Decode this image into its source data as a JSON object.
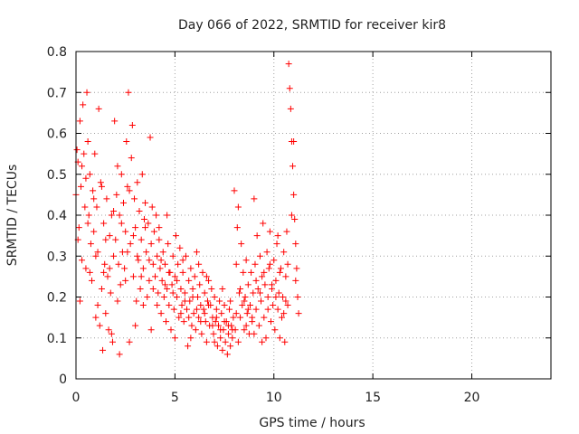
{
  "chart_data": {
    "type": "scatter",
    "title": "Day 066 of 2022, SRMTID for receiver kir8",
    "xlabel": "GPS time / hours",
    "ylabel": "SRMTID / TECUs",
    "xlim": [
      0,
      24
    ],
    "ylim": [
      0,
      0.8
    ],
    "x_ticks": [
      0,
      5,
      10,
      15,
      20
    ],
    "y_ticks": [
      0,
      0.1,
      0.2,
      0.3,
      0.4,
      0.5,
      0.6,
      0.7,
      0.8
    ],
    "x_tick_labels": [
      "0",
      "5",
      "10",
      "15",
      "20"
    ],
    "y_tick_labels": [
      "0",
      "0.1",
      "0.2",
      "0.3",
      "0.4",
      "0.5",
      "0.6",
      "0.7",
      "0.8"
    ],
    "grid": true,
    "marker": "+",
    "color": "#ff0000",
    "series": [
      {
        "name": "SRMTID",
        "points": [
          [
            0.0,
            0.45
          ],
          [
            0.05,
            0.56
          ],
          [
            0.1,
            0.53
          ],
          [
            0.15,
            0.37
          ],
          [
            0.2,
            0.63
          ],
          [
            0.25,
            0.47
          ],
          [
            0.3,
            0.29
          ],
          [
            0.35,
            0.67
          ],
          [
            0.4,
            0.55
          ],
          [
            0.45,
            0.42
          ],
          [
            0.5,
            0.27
          ],
          [
            0.55,
            0.7
          ],
          [
            0.6,
            0.58
          ],
          [
            0.65,
            0.4
          ],
          [
            0.7,
            0.5
          ],
          [
            0.75,
            0.33
          ],
          [
            0.8,
            0.24
          ],
          [
            0.85,
            0.46
          ],
          [
            0.9,
            0.36
          ],
          [
            0.95,
            0.55
          ],
          [
            1.0,
            0.3
          ],
          [
            1.05,
            0.42
          ],
          [
            1.1,
            0.18
          ],
          [
            1.15,
            0.66
          ],
          [
            1.2,
            0.13
          ],
          [
            1.25,
            0.48
          ],
          [
            1.3,
            0.22
          ],
          [
            1.35,
            0.07
          ],
          [
            1.4,
            0.38
          ],
          [
            1.45,
            0.28
          ],
          [
            1.5,
            0.16
          ],
          [
            1.55,
            0.44
          ],
          [
            1.6,
            0.25
          ],
          [
            1.65,
            0.12
          ],
          [
            1.7,
            0.35
          ],
          [
            1.75,
            0.21
          ],
          [
            1.8,
            0.4
          ],
          [
            1.85,
            0.09
          ],
          [
            1.9,
            0.3
          ],
          [
            1.95,
            0.63
          ],
          [
            2.0,
            0.34
          ],
          [
            2.05,
            0.45
          ],
          [
            2.1,
            0.19
          ],
          [
            2.15,
            0.28
          ],
          [
            2.2,
            0.4
          ],
          [
            2.25,
            0.23
          ],
          [
            2.3,
            0.5
          ],
          [
            2.35,
            0.31
          ],
          [
            2.4,
            0.43
          ],
          [
            2.45,
            0.27
          ],
          [
            2.5,
            0.36
          ],
          [
            2.55,
            0.58
          ],
          [
            2.6,
            0.47
          ],
          [
            2.65,
            0.7
          ],
          [
            2.7,
            0.09
          ],
          [
            2.75,
            0.33
          ],
          [
            2.8,
            0.54
          ],
          [
            2.85,
            0.62
          ],
          [
            2.9,
            0.25
          ],
          [
            2.95,
            0.44
          ],
          [
            3.0,
            0.37
          ],
          [
            3.05,
            0.19
          ],
          [
            3.1,
            0.48
          ],
          [
            3.15,
            0.29
          ],
          [
            3.2,
            0.41
          ],
          [
            3.25,
            0.22
          ],
          [
            3.3,
            0.34
          ],
          [
            3.35,
            0.5
          ],
          [
            3.4,
            0.27
          ],
          [
            3.45,
            0.39
          ],
          [
            3.5,
            0.43
          ],
          [
            3.55,
            0.31
          ],
          [
            3.6,
            0.2
          ],
          [
            3.65,
            0.38
          ],
          [
            3.7,
            0.24
          ],
          [
            3.75,
            0.59
          ],
          [
            3.8,
            0.33
          ],
          [
            3.85,
            0.42
          ],
          [
            3.9,
            0.28
          ],
          [
            3.95,
            0.36
          ],
          [
            4.0,
            0.25
          ],
          [
            4.05,
            0.4
          ],
          [
            4.1,
            0.3
          ],
          [
            4.15,
            0.21
          ],
          [
            4.2,
            0.34
          ],
          [
            4.25,
            0.27
          ],
          [
            4.3,
            0.16
          ],
          [
            4.35,
            0.24
          ],
          [
            4.4,
            0.31
          ],
          [
            4.45,
            0.2
          ],
          [
            4.5,
            0.28
          ],
          [
            4.55,
            0.14
          ],
          [
            4.6,
            0.22
          ],
          [
            4.65,
            0.33
          ],
          [
            4.7,
            0.18
          ],
          [
            4.75,
            0.26
          ],
          [
            4.8,
            0.12
          ],
          [
            4.85,
            0.23
          ],
          [
            4.9,
            0.3
          ],
          [
            4.95,
            0.17
          ],
          [
            5.0,
            0.25
          ],
          [
            5.05,
            0.35
          ],
          [
            5.1,
            0.2
          ],
          [
            5.15,
            0.28
          ],
          [
            5.2,
            0.15
          ],
          [
            5.25,
            0.32
          ],
          [
            5.3,
            0.22
          ],
          [
            5.35,
            0.18
          ],
          [
            5.4,
            0.26
          ],
          [
            5.45,
            0.14
          ],
          [
            5.5,
            0.21
          ],
          [
            5.55,
            0.3
          ],
          [
            5.6,
            0.17
          ],
          [
            5.65,
            0.08
          ],
          [
            5.7,
            0.24
          ],
          [
            5.75,
            0.19
          ],
          [
            5.8,
            0.27
          ],
          [
            5.85,
            0.13
          ],
          [
            5.9,
            0.22
          ],
          [
            5.95,
            0.16
          ],
          [
            6.0,
            0.25
          ],
          [
            6.05,
            0.12
          ],
          [
            6.1,
            0.31
          ],
          [
            6.15,
            0.2
          ],
          [
            6.2,
            0.15
          ],
          [
            6.25,
            0.23
          ],
          [
            6.3,
            0.18
          ],
          [
            6.35,
            0.11
          ],
          [
            6.4,
            0.26
          ],
          [
            6.45,
            0.17
          ],
          [
            6.5,
            0.21
          ],
          [
            6.55,
            0.14
          ],
          [
            6.6,
            0.09
          ],
          [
            6.65,
            0.19
          ],
          [
            6.7,
            0.24
          ],
          [
            6.75,
            0.13
          ],
          [
            6.8,
            0.18
          ],
          [
            6.85,
            0.22
          ],
          [
            6.9,
            0.15
          ],
          [
            6.95,
            0.11
          ],
          [
            7.0,
            0.2
          ],
          [
            7.05,
            0.14
          ],
          [
            7.1,
            0.17
          ],
          [
            7.15,
            0.08
          ],
          [
            7.2,
            0.13
          ],
          [
            7.25,
            0.19
          ],
          [
            7.3,
            0.1
          ],
          [
            7.35,
            0.16
          ],
          [
            7.4,
            0.07
          ],
          [
            7.45,
            0.12
          ],
          [
            7.5,
            0.18
          ],
          [
            7.55,
            0.09
          ],
          [
            7.6,
            0.14
          ],
          [
            7.65,
            0.06
          ],
          [
            7.7,
            0.11
          ],
          [
            7.75,
            0.17
          ],
          [
            7.8,
            0.08
          ],
          [
            7.85,
            0.13
          ],
          [
            7.9,
            0.1
          ],
          [
            7.95,
            0.15
          ],
          [
            8.0,
            0.46
          ],
          [
            8.05,
            0.12
          ],
          [
            8.1,
            0.28
          ],
          [
            8.15,
            0.37
          ],
          [
            8.2,
            0.09
          ],
          [
            8.25,
            0.21
          ],
          [
            8.3,
            0.15
          ],
          [
            8.35,
            0.33
          ],
          [
            8.4,
            0.18
          ],
          [
            8.45,
            0.26
          ],
          [
            8.5,
            0.12
          ],
          [
            8.55,
            0.2
          ],
          [
            8.6,
            0.29
          ],
          [
            8.65,
            0.16
          ],
          [
            8.7,
            0.23
          ],
          [
            8.75,
            0.11
          ],
          [
            8.8,
            0.18
          ],
          [
            8.85,
            0.26
          ],
          [
            8.9,
            0.14
          ],
          [
            8.95,
            0.21
          ],
          [
            9.0,
            0.44
          ],
          [
            9.05,
            0.28
          ],
          [
            9.1,
            0.17
          ],
          [
            9.15,
            0.35
          ],
          [
            9.2,
            0.22
          ],
          [
            9.25,
            0.13
          ],
          [
            9.3,
            0.3
          ],
          [
            9.35,
            0.19
          ],
          [
            9.4,
            0.25
          ],
          [
            9.45,
            0.38
          ],
          [
            9.5,
            0.15
          ],
          [
            9.55,
            0.23
          ],
          [
            9.6,
            0.1
          ],
          [
            9.65,
            0.31
          ],
          [
            9.7,
            0.2
          ],
          [
            9.75,
            0.27
          ],
          [
            9.8,
            0.36
          ],
          [
            9.85,
            0.14
          ],
          [
            9.9,
            0.22
          ],
          [
            9.95,
            0.18
          ],
          [
            10.0,
            0.29
          ],
          [
            10.05,
            0.12
          ],
          [
            10.1,
            0.24
          ],
          [
            10.15,
            0.33
          ],
          [
            10.2,
            0.17
          ],
          [
            10.25,
            0.21
          ],
          [
            10.3,
            0.1
          ],
          [
            10.35,
            0.27
          ],
          [
            10.4,
            0.15
          ],
          [
            10.45,
            0.2
          ],
          [
            10.5,
            0.31
          ],
          [
            10.55,
            0.09
          ],
          [
            10.6,
            0.25
          ],
          [
            10.65,
            0.36
          ],
          [
            10.7,
            0.18
          ],
          [
            10.75,
            0.77
          ],
          [
            10.8,
            0.71
          ],
          [
            10.85,
            0.66
          ],
          [
            10.9,
            0.58
          ],
          [
            10.95,
            0.52
          ],
          [
            11.0,
            0.45
          ],
          [
            11.05,
            0.39
          ],
          [
            11.1,
            0.33
          ],
          [
            11.15,
            0.27
          ],
          [
            11.2,
            0.2
          ],
          [
            11.25,
            0.16
          ],
          [
            0.1,
            0.34
          ],
          [
            0.3,
            0.52
          ],
          [
            0.5,
            0.49
          ],
          [
            0.7,
            0.26
          ],
          [
            0.9,
            0.44
          ],
          [
            1.1,
            0.31
          ],
          [
            1.3,
            0.47
          ],
          [
            1.5,
            0.34
          ],
          [
            1.7,
            0.27
          ],
          [
            1.9,
            0.41
          ],
          [
            2.1,
            0.52
          ],
          [
            2.3,
            0.38
          ],
          [
            2.5,
            0.24
          ],
          [
            2.7,
            0.46
          ],
          [
            2.9,
            0.35
          ],
          [
            3.1,
            0.3
          ],
          [
            3.3,
            0.25
          ],
          [
            3.5,
            0.37
          ],
          [
            3.7,
            0.29
          ],
          [
            3.9,
            0.22
          ],
          [
            4.1,
            0.18
          ],
          [
            4.3,
            0.29
          ],
          [
            4.5,
            0.23
          ],
          [
            4.7,
            0.26
          ],
          [
            4.9,
            0.21
          ],
          [
            5.1,
            0.24
          ],
          [
            5.3,
            0.16
          ],
          [
            5.5,
            0.19
          ],
          [
            5.7,
            0.15
          ],
          [
            5.9,
            0.2
          ],
          [
            6.1,
            0.17
          ],
          [
            6.3,
            0.14
          ],
          [
            6.5,
            0.16
          ],
          [
            6.7,
            0.18
          ],
          [
            6.9,
            0.13
          ],
          [
            7.1,
            0.15
          ],
          [
            7.3,
            0.12
          ],
          [
            7.5,
            0.14
          ],
          [
            7.7,
            0.13
          ],
          [
            7.9,
            0.12
          ],
          [
            8.1,
            0.16
          ],
          [
            8.3,
            0.22
          ],
          [
            8.5,
            0.19
          ],
          [
            8.7,
            0.17
          ],
          [
            8.9,
            0.15
          ],
          [
            9.1,
            0.24
          ],
          [
            9.3,
            0.21
          ],
          [
            9.5,
            0.26
          ],
          [
            9.7,
            0.17
          ],
          [
            9.9,
            0.23
          ],
          [
            10.1,
            0.2
          ],
          [
            10.3,
            0.26
          ],
          [
            10.5,
            0.16
          ],
          [
            10.7,
            0.28
          ],
          [
            10.9,
            0.4
          ],
          [
            11.1,
            0.24
          ],
          [
            0.2,
            0.19
          ],
          [
            0.6,
            0.38
          ],
          [
            1.0,
            0.15
          ],
          [
            1.4,
            0.26
          ],
          [
            1.8,
            0.11
          ],
          [
            2.2,
            0.06
          ],
          [
            2.6,
            0.31
          ],
          [
            3.0,
            0.13
          ],
          [
            3.4,
            0.18
          ],
          [
            3.8,
            0.12
          ],
          [
            4.2,
            0.37
          ],
          [
            4.6,
            0.4
          ],
          [
            5.0,
            0.1
          ],
          [
            5.4,
            0.29
          ],
          [
            5.8,
            0.1
          ],
          [
            6.2,
            0.28
          ],
          [
            6.6,
            0.25
          ],
          [
            7.0,
            0.09
          ],
          [
            7.4,
            0.22
          ],
          [
            7.8,
            0.19
          ],
          [
            8.2,
            0.42
          ],
          [
            8.6,
            0.13
          ],
          [
            9.0,
            0.11
          ],
          [
            9.4,
            0.09
          ],
          [
            9.8,
            0.28
          ],
          [
            10.2,
            0.35
          ],
          [
            10.6,
            0.19
          ],
          [
            11.0,
            0.58
          ]
        ]
      }
    ]
  }
}
